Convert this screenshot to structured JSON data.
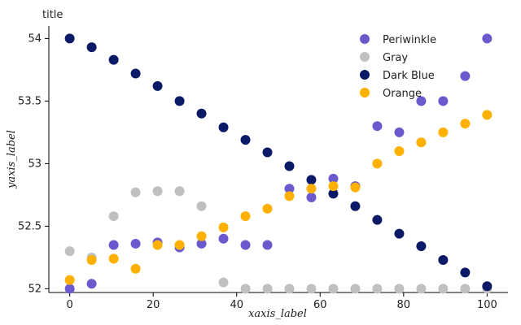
{
  "chart_data": {
    "type": "scatter",
    "title": "title",
    "xlabel": "xaxis_label",
    "ylabel": "yaxis_label",
    "xlim": [
      -5,
      105
    ],
    "ylim": [
      51.97,
      54.1
    ],
    "xticks": [
      0,
      20,
      40,
      60,
      80,
      100
    ],
    "yticks": [
      52,
      52.5,
      53,
      53.5,
      54
    ],
    "xtick_labels": [
      "0",
      "20",
      "40",
      "60",
      "80",
      "100"
    ],
    "ytick_labels": [
      "52",
      "52.5",
      "53",
      "53.5",
      "54"
    ],
    "grid": false,
    "legend_position": "top-right",
    "series": [
      {
        "name": "Periwinkle",
        "color": "#6a5acd",
        "x": [
          0,
          5.26,
          10.53,
          15.79,
          21.05,
          26.32,
          31.58,
          36.84,
          42.11,
          47.37,
          52.63,
          57.89,
          63.16,
          68.42,
          73.68,
          78.95,
          84.21,
          89.47,
          94.74,
          100
        ],
        "y": [
          52.0,
          52.04,
          52.35,
          52.36,
          52.37,
          52.33,
          52.36,
          52.4,
          52.35,
          52.35,
          52.8,
          52.73,
          52.88,
          52.82,
          53.3,
          53.25,
          53.5,
          53.5,
          53.7,
          54.0
        ]
      },
      {
        "name": "Gray",
        "color": "#c0c0c0",
        "x": [
          0,
          5.26,
          10.53,
          15.79,
          21.05,
          26.32,
          31.58,
          36.84,
          42.11,
          47.37,
          52.63,
          57.89,
          63.16,
          68.42,
          73.68,
          78.95,
          84.21,
          89.47,
          94.74,
          100
        ],
        "y": [
          52.3,
          52.25,
          52.58,
          52.77,
          52.78,
          52.78,
          52.66,
          52.05,
          52.0,
          52.0,
          52.0,
          52.0,
          52.0,
          52.0,
          52.0,
          52.0,
          52.0,
          52.0,
          52.0,
          52.0
        ]
      },
      {
        "name": "Dark Blue",
        "color": "#0a1a66",
        "x": [
          0,
          5.26,
          10.53,
          15.79,
          21.05,
          26.32,
          31.58,
          36.84,
          42.11,
          47.37,
          52.63,
          57.89,
          63.16,
          68.42,
          73.68,
          78.95,
          84.21,
          89.47,
          94.74,
          100
        ],
        "y": [
          54.0,
          53.93,
          53.83,
          53.72,
          53.62,
          53.5,
          53.4,
          53.29,
          53.19,
          53.09,
          52.98,
          52.87,
          52.76,
          52.66,
          52.55,
          52.44,
          52.34,
          52.23,
          52.13,
          52.02
        ]
      },
      {
        "name": "Orange",
        "color": "#ffb000",
        "x": [
          0,
          5.26,
          10.53,
          15.79,
          21.05,
          26.32,
          31.58,
          36.84,
          42.11,
          47.37,
          52.63,
          57.89,
          63.16,
          68.42,
          73.68,
          78.95,
          84.21,
          89.47,
          94.74,
          100
        ],
        "y": [
          52.07,
          52.23,
          52.24,
          52.16,
          52.35,
          52.35,
          52.42,
          52.49,
          52.58,
          52.64,
          52.74,
          52.8,
          52.82,
          52.81,
          53.0,
          53.1,
          53.17,
          53.25,
          53.32,
          53.39
        ]
      }
    ]
  }
}
